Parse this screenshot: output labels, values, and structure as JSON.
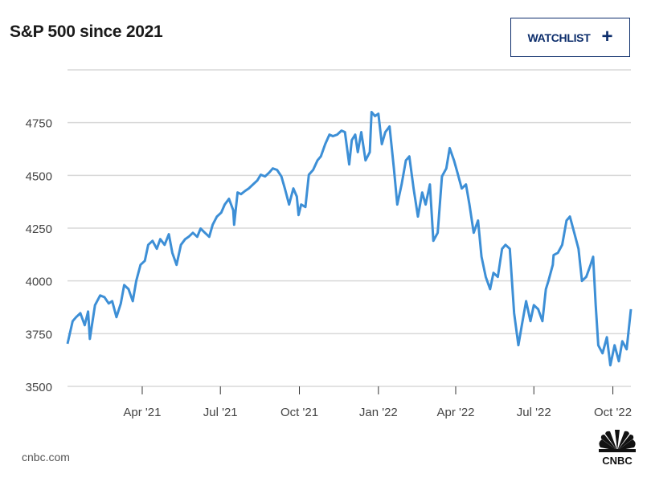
{
  "header": {
    "title": "S&P 500 since 2021",
    "watchlist_label": "WATCHLIST",
    "watchlist_icon": "plus-icon"
  },
  "footer": {
    "source": "cnbc.com",
    "logo_text": "CNBC"
  },
  "colors": {
    "line": "#3d8fd6",
    "grid": "#d9d9d9",
    "accent": "#0c2d6b"
  },
  "chart_data": {
    "type": "line",
    "title": "S&P 500 since 2021",
    "xlabel": "",
    "ylabel": "",
    "xlim": [
      "2021-01-04",
      "2022-10-22"
    ],
    "ylim": [
      3500,
      5000
    ],
    "yticks": [
      3500,
      3750,
      4000,
      4250,
      4500,
      4750,
      5000
    ],
    "ytick_labels": [
      "3500",
      "3750",
      "4000",
      "4250",
      "4500",
      "4750",
      ""
    ],
    "xticks": [
      "2021-04-01",
      "2021-07-01",
      "2021-10-01",
      "2022-01-01",
      "2022-04-01",
      "2022-07-01",
      "2022-10-01"
    ],
    "xtick_labels": [
      "Apr '21",
      "Jul '21",
      "Oct '21",
      "Jan '22",
      "Apr '22",
      "Jul '22",
      "Oct '22"
    ],
    "grid": true,
    "legend": "none",
    "series": [
      {
        "name": "S&P 500",
        "x": [
          "2021-01-04",
          "2021-01-10",
          "2021-01-14",
          "2021-01-19",
          "2021-01-24",
          "2021-01-28",
          "2021-01-30",
          "2021-02-05",
          "2021-02-11",
          "2021-02-16",
          "2021-02-21",
          "2021-02-25",
          "2021-03-02",
          "2021-03-07",
          "2021-03-11",
          "2021-03-16",
          "2021-03-21",
          "2021-03-25",
          "2021-03-30",
          "2021-04-04",
          "2021-04-08",
          "2021-04-13",
          "2021-04-18",
          "2021-04-22",
          "2021-04-27",
          "2021-05-02",
          "2021-05-06",
          "2021-05-11",
          "2021-05-16",
          "2021-05-21",
          "2021-05-25",
          "2021-05-30",
          "2021-06-04",
          "2021-06-08",
          "2021-06-13",
          "2021-06-18",
          "2021-06-22",
          "2021-06-27",
          "2021-07-02",
          "2021-07-06",
          "2021-07-11",
          "2021-07-16",
          "2021-07-17",
          "2021-07-21",
          "2021-07-25",
          "2021-07-30",
          "2021-08-03",
          "2021-08-08",
          "2021-08-13",
          "2021-08-17",
          "2021-08-22",
          "2021-08-27",
          "2021-08-31",
          "2021-09-05",
          "2021-09-10",
          "2021-09-14",
          "2021-09-19",
          "2021-09-24",
          "2021-09-28",
          "2021-09-30",
          "2021-10-03",
          "2021-10-08",
          "2021-10-12",
          "2021-10-17",
          "2021-10-22",
          "2021-10-26",
          "2021-10-31",
          "2021-11-05",
          "2021-11-09",
          "2021-11-14",
          "2021-11-19",
          "2021-11-23",
          "2021-11-28",
          "2021-12-01",
          "2021-12-05",
          "2021-12-08",
          "2021-12-12",
          "2021-12-17",
          "2021-12-22",
          "2021-12-24",
          "2021-12-28",
          "2022-01-01",
          "2022-01-05",
          "2022-01-09",
          "2022-01-14",
          "2022-01-19",
          "2022-01-23",
          "2022-01-28",
          "2022-02-02",
          "2022-02-06",
          "2022-02-11",
          "2022-02-16",
          "2022-02-21",
          "2022-02-25",
          "2022-03-02",
          "2022-03-06",
          "2022-03-11",
          "2022-03-16",
          "2022-03-21",
          "2022-03-25",
          "2022-03-30",
          "2022-04-03",
          "2022-04-08",
          "2022-04-13",
          "2022-04-17",
          "2022-04-22",
          "2022-04-27",
          "2022-05-01",
          "2022-05-06",
          "2022-05-11",
          "2022-05-15",
          "2022-05-20",
          "2022-05-25",
          "2022-05-29",
          "2022-06-03",
          "2022-06-08",
          "2022-06-13",
          "2022-06-17",
          "2022-06-22",
          "2022-06-27",
          "2022-07-01",
          "2022-07-06",
          "2022-07-11",
          "2022-07-15",
          "2022-07-18",
          "2022-07-23",
          "2022-07-24",
          "2022-07-29",
          "2022-08-03",
          "2022-08-08",
          "2022-08-12",
          "2022-08-17",
          "2022-08-22",
          "2022-08-26",
          "2022-08-31",
          "2022-09-05",
          "2022-09-08",
          "2022-09-11",
          "2022-09-14",
          "2022-09-19",
          "2022-09-24",
          "2022-09-28",
          "2022-10-03",
          "2022-10-08",
          "2022-10-12",
          "2022-10-17",
          "2022-10-22"
        ],
        "values": [
          3702,
          3809,
          3828,
          3847,
          3790,
          3855,
          3725,
          3885,
          3931,
          3923,
          3893,
          3904,
          3828,
          3893,
          3980,
          3961,
          3904,
          4000,
          4076,
          4095,
          4171,
          4190,
          4152,
          4198,
          4171,
          4221,
          4133,
          4076,
          4171,
          4198,
          4209,
          4228,
          4209,
          4248,
          4228,
          4209,
          4266,
          4305,
          4324,
          4362,
          4389,
          4335,
          4266,
          4419,
          4411,
          4427,
          4438,
          4457,
          4476,
          4503,
          4495,
          4514,
          4533,
          4526,
          4495,
          4438,
          4362,
          4438,
          4400,
          4312,
          4362,
          4350,
          4503,
          4526,
          4571,
          4590,
          4648,
          4693,
          4686,
          4693,
          4712,
          4705,
          4552,
          4667,
          4693,
          4610,
          4705,
          4571,
          4610,
          4800,
          4781,
          4792,
          4648,
          4705,
          4732,
          4533,
          4362,
          4457,
          4571,
          4590,
          4438,
          4305,
          4419,
          4362,
          4457,
          4190,
          4228,
          4495,
          4533,
          4629,
          4571,
          4514,
          4438,
          4457,
          4362,
          4228,
          4286,
          4115,
          4019,
          3961,
          4038,
          4019,
          4152,
          4171,
          4152,
          3847,
          3695,
          3790,
          3904,
          3809,
          3885,
          3866,
          3809,
          3961,
          4000,
          4076,
          4122,
          4133,
          4171,
          4286,
          4305,
          4228,
          4152,
          4000,
          4019,
          4076,
          4114,
          3885,
          3695,
          3657,
          3733,
          3600,
          3695,
          3619,
          3714,
          3676,
          3866
        ]
      }
    ]
  }
}
